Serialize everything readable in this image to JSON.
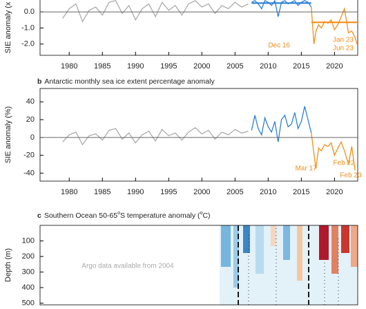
{
  "chart_data": [
    {
      "type": "line",
      "ylabel": "SIE anomaly (x",
      "xlim": [
        1975.6,
        2023.5
      ],
      "xticks": [
        1980,
        1985,
        1990,
        1995,
        2000,
        2005,
        2010,
        2015,
        2020
      ],
      "ylim": [
        -2.7,
        0.74
      ],
      "yticks": [
        {
          "value": 0,
          "label": "0.0"
        },
        {
          "value": -1,
          "label": "-1.0"
        },
        {
          "value": -2,
          "label": "-2.0"
        }
      ],
      "series": [
        {
          "color": "#aaaaaa",
          "x": [
            1979,
            1980,
            1981,
            1982,
            1983,
            1984,
            1985,
            1986,
            1987,
            1988,
            1989,
            1990,
            1991,
            1992,
            1993,
            1994,
            1995,
            1996,
            1997,
            1998,
            1999,
            2000,
            2001,
            2002,
            2003,
            2004,
            2005,
            2006,
            2007
          ],
          "values": [
            -0.4,
            0.2,
            0.5,
            -0.6,
            0.1,
            0.3,
            -0.2,
            0.6,
            0.7,
            -0.1,
            0.4,
            -0.5,
            0.2,
            0.5,
            -0.3,
            0.6,
            0.1,
            0.4,
            -0.2,
            0.5,
            0.7,
            0.3,
            0.5,
            -0.1,
            0.4,
            0.2,
            0.6,
            0.3,
            0.5
          ]
        },
        {
          "color": "#2a7fd8",
          "x": [
            2007.5,
            2008,
            2008.5,
            2009,
            2009.5,
            2010,
            2010.5,
            2011,
            2011.5,
            2012,
            2012.5,
            2013,
            2013.5,
            2014,
            2014.5,
            2015,
            2015.5,
            2016,
            2016.5
          ],
          "values": [
            0.6,
            0.7,
            0.5,
            0.2,
            0.7,
            0.6,
            0.4,
            0.7,
            -0.3,
            0.6,
            0.7,
            0.5,
            0.6,
            0.7,
            0.4,
            0.6,
            0.7,
            0.6,
            0.3
          ]
        },
        {
          "color": "#f28e16",
          "x": [
            2016.5,
            2016.9,
            2017.2,
            2017.6,
            2018,
            2018.5,
            2019,
            2019.5,
            2020,
            2020.5,
            2021,
            2021.5,
            2022.1,
            2022.6,
            2023.1,
            2023.5
          ],
          "values": [
            0.3,
            -2.0,
            -1.2,
            -0.8,
            -1.0,
            -0.6,
            -0.7,
            -0.5,
            -1.1,
            -0.8,
            -0.3,
            0.2,
            -1.3,
            -1.2,
            -1.6,
            -2.1
          ]
        }
      ],
      "means": [
        {
          "color": "#2a7fd8",
          "value": 0.55,
          "x": [
            2007.5,
            2016.5
          ]
        },
        {
          "color": "#f28e16",
          "value": -0.65,
          "x": [
            2016.5,
            2023.5
          ]
        }
      ],
      "annotations": [
        {
          "text": "Dec 16",
          "color": "#f28e16"
        },
        {
          "text": "Jan 23",
          "color": "#f28e16"
        },
        {
          "text": "Jun 23",
          "color": "#f28e16"
        }
      ]
    },
    {
      "type": "line",
      "panel": "b",
      "title": "Antarctic monthly sea ice extent percentage anomaly",
      "ylabel": "SIE anomaly (%)",
      "xlim": [
        1975.6,
        2023.5
      ],
      "xticks": [
        1980,
        1985,
        1990,
        1995,
        2000,
        2005,
        2010,
        2015,
        2020
      ],
      "ylim": [
        -49,
        55
      ],
      "yticks": [
        40,
        20,
        0,
        -20,
        -40
      ],
      "series": [
        {
          "color": "#aaaaaa",
          "x": [
            1979,
            1980,
            1981,
            1982,
            1983,
            1984,
            1985,
            1986,
            1987,
            1988,
            1989,
            1990,
            1991,
            1992,
            1993,
            1994,
            1995,
            1996,
            1997,
            1998,
            1999,
            2000,
            2001,
            2002,
            2003,
            2004,
            2005,
            2006,
            2007
          ],
          "values": [
            -5,
            3,
            6,
            -8,
            2,
            4,
            -3,
            8,
            10,
            -2,
            5,
            -6,
            3,
            7,
            -4,
            9,
            2,
            5,
            -3,
            6,
            11,
            4,
            8,
            -2,
            6,
            3,
            9,
            5,
            7
          ]
        },
        {
          "color": "#2a7fd8",
          "x": [
            2007.5,
            2008,
            2008.5,
            2009,
            2009.5,
            2010,
            2010.5,
            2011,
            2011.5,
            2012,
            2012.5,
            2013,
            2013.5,
            2014,
            2014.5,
            2015,
            2015.5,
            2016,
            2016.5
          ],
          "values": [
            8,
            25,
            10,
            3,
            22,
            12,
            6,
            18,
            -5,
            20,
            25,
            12,
            15,
            28,
            10,
            18,
            35,
            20,
            5
          ]
        },
        {
          "color": "#f28e16",
          "x": [
            2016.5,
            2016.9,
            2017.2,
            2017.6,
            2018,
            2018.5,
            2019,
            2019.5,
            2020,
            2020.5,
            2021,
            2021.5,
            2022.1,
            2022.6,
            2023.1
          ],
          "values": [
            5,
            -18,
            -35,
            -12,
            -15,
            -8,
            -10,
            -6,
            -20,
            -12,
            -5,
            -15,
            -30,
            -10,
            -37
          ]
        }
      ],
      "annotations": [
        {
          "text": "Mar 17",
          "color": "#f28e16"
        },
        {
          "text": "Feb 22",
          "color": "#f28e16"
        },
        {
          "text": "Feb 23",
          "color": "#f28e16"
        }
      ]
    },
    {
      "type": "heatmap",
      "panel": "c",
      "title_parts": [
        "Southern Ocean 50-65",
        "o",
        "S temperature anomaly (",
        "o",
        "C)"
      ],
      "ylabel": "Depth (m)",
      "ylim": [
        0,
        520
      ],
      "yticks": [
        100,
        200,
        300,
        400,
        500
      ],
      "y_inverted": true,
      "annotations": [
        {
          "text": "Argo data available from 2004",
          "color": "#aaaaaa"
        }
      ]
    }
  ]
}
